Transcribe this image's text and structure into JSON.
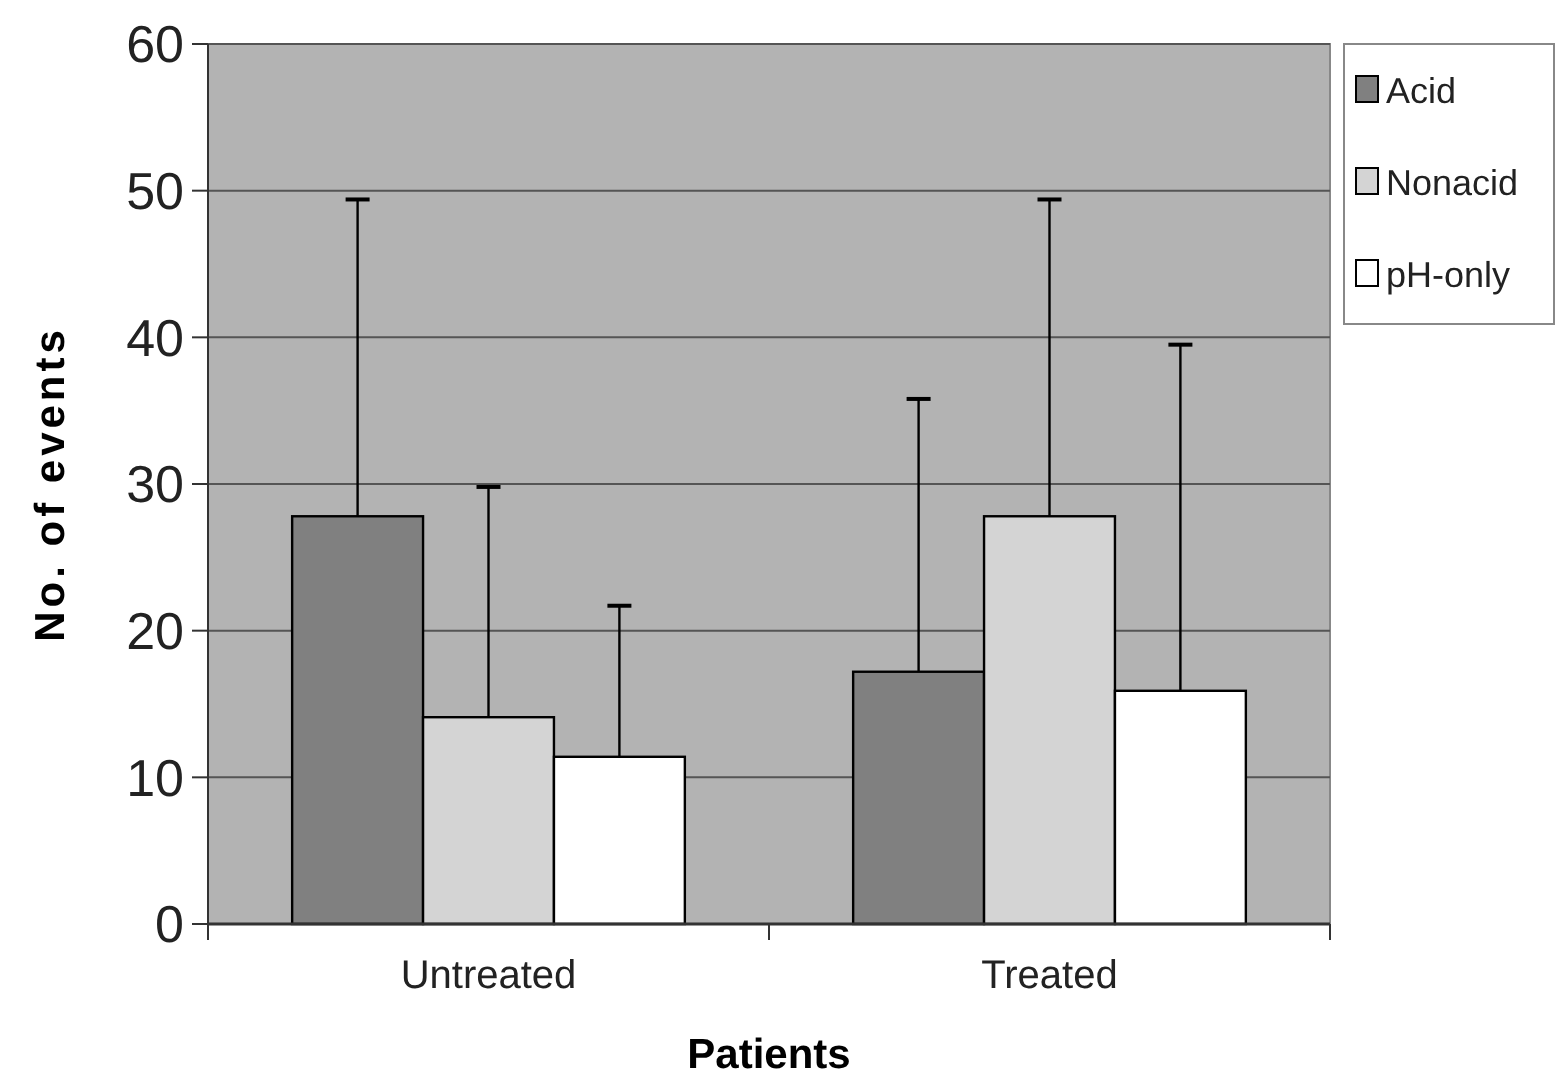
{
  "chart_data": {
    "type": "bar",
    "xlabel": "Patients",
    "ylabel": "No. of events",
    "categories": [
      "Untreated",
      "Treated"
    ],
    "series": [
      {
        "name": "Acid",
        "color": "#808080",
        "values": [
          27.8,
          17.2
        ],
        "errors": [
          [
            27.8,
            49.4
          ],
          [
            17.2,
            35.8
          ]
        ]
      },
      {
        "name": "Nonacid",
        "color": "#d4d4d4",
        "values": [
          14.1,
          27.8
        ],
        "errors": [
          [
            14.1,
            29.8
          ],
          [
            27.8,
            49.4
          ]
        ]
      },
      {
        "name": "pH-only",
        "color": "#ffffff",
        "values": [
          11.4,
          15.9
        ],
        "errors": [
          [
            11.4,
            21.7
          ],
          [
            15.9,
            39.5
          ]
        ]
      }
    ],
    "ylim": [
      0,
      60
    ],
    "yticks": [
      0,
      10,
      20,
      30,
      40,
      50,
      60
    ],
    "grid": "y",
    "legend": "right"
  }
}
